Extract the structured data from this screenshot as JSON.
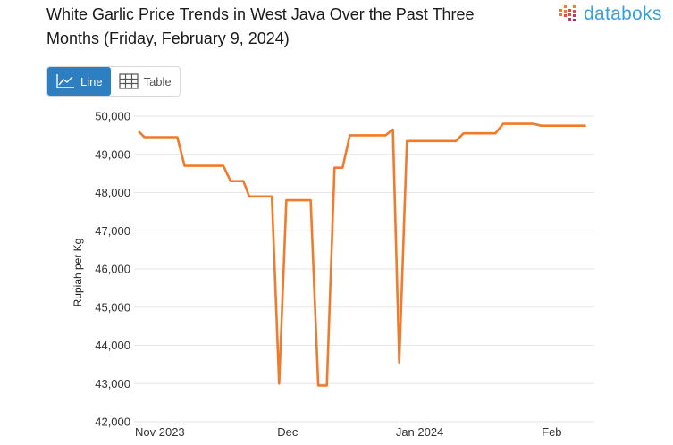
{
  "header": {
    "title": "White Garlic Price Trends in West Java Over the Past Three Months (Friday, February 9, 2024)",
    "brand": "databoks"
  },
  "view_toggle": {
    "line_label": "Line",
    "table_label": "Table",
    "active": "line"
  },
  "colors": {
    "line": "#f07b2c",
    "grid": "#e6e6e6",
    "accent": "#2e7fc1",
    "brand": "#3aa0d9"
  },
  "chart_data": {
    "type": "line",
    "title": "White Garlic Price Trends in West Java Over the Past Three Months (Friday, February 9, 2024)",
    "xlabel": "",
    "ylabel": "Rupiah per Kg",
    "ylim": [
      42000,
      50000
    ],
    "y_ticks": [
      42000,
      43000,
      44000,
      45000,
      46000,
      47000,
      48000,
      49000,
      50000
    ],
    "y_tick_labels": [
      "42,000",
      "43,000",
      "44,000",
      "45,000",
      "46,000",
      "47,000",
      "48,000",
      "49,000",
      "50,000"
    ],
    "x_tick_labels": [
      {
        "label": "Nov 2023",
        "day": 0
      },
      {
        "label": "Dec",
        "day": 30
      },
      {
        "label": "Jan 2024",
        "day": 61
      },
      {
        "label": "Feb",
        "day": 92
      }
    ],
    "x_range_days": [
      -5,
      102
    ],
    "series": [
      {
        "name": "White Garlic Price",
        "points": [
          [
            -5.0,
            49600
          ],
          [
            -3.6,
            49450
          ],
          [
            4.1,
            49450
          ],
          [
            5.8,
            48700
          ],
          [
            14.9,
            48700
          ],
          [
            16.6,
            48300
          ],
          [
            19.6,
            48300
          ],
          [
            21.0,
            47900
          ],
          [
            26.3,
            47900
          ],
          [
            28.0,
            43000
          ],
          [
            29.7,
            47800
          ],
          [
            35.4,
            47800
          ],
          [
            37.2,
            42950
          ],
          [
            39.2,
            42950
          ],
          [
            41.0,
            48650
          ],
          [
            42.9,
            48650
          ],
          [
            44.6,
            49500
          ],
          [
            53.0,
            49500
          ],
          [
            54.7,
            49650
          ],
          [
            56.2,
            43550
          ],
          [
            58.0,
            49350
          ],
          [
            69.5,
            49350
          ],
          [
            71.3,
            49550
          ],
          [
            78.8,
            49550
          ],
          [
            80.6,
            49800
          ],
          [
            87.7,
            49800
          ],
          [
            89.5,
            49750
          ],
          [
            100.0,
            49750
          ]
        ]
      }
    ]
  }
}
